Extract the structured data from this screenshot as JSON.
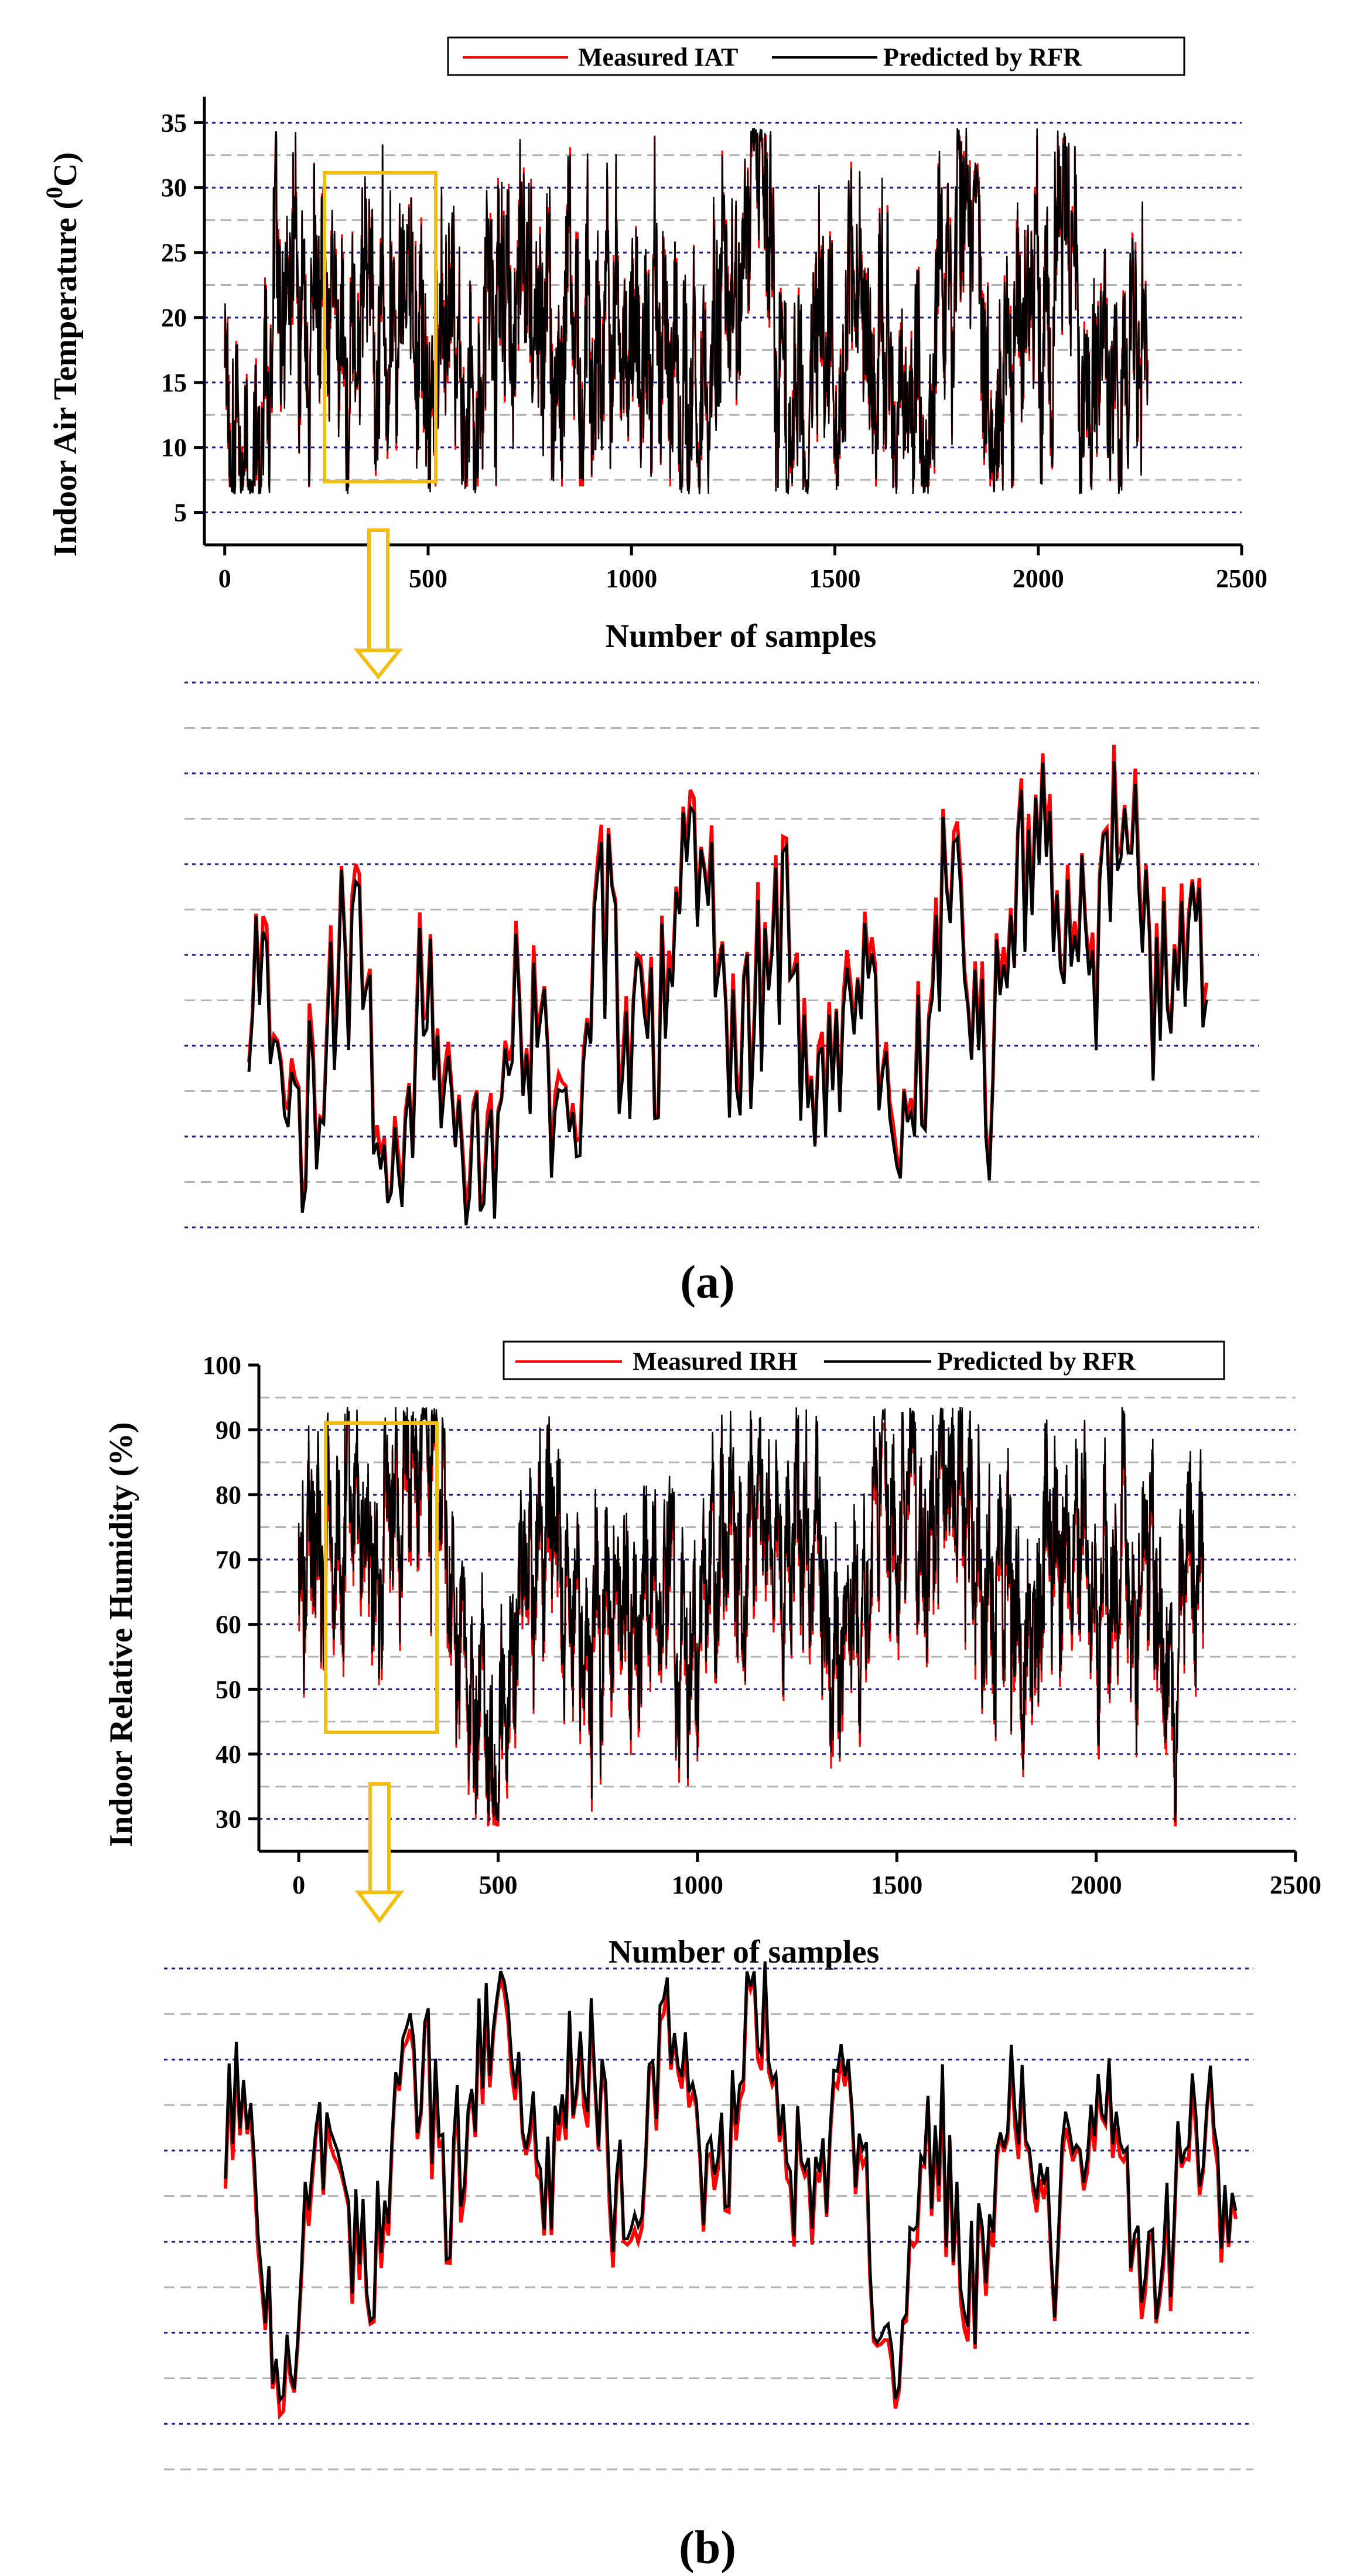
{
  "colors": {
    "measured": "#ff0000",
    "predicted": "#000000",
    "major_grid": "#1c1c8c",
    "minor_grid": "#b4b4b4",
    "highlight": "#f2be12"
  },
  "chart_data": [
    {
      "id": "a_main",
      "type": "line",
      "xlabel": "Number of samples",
      "ylabel": "Indoor Air Temperature (",
      "ylabel_sup": "0",
      "ylabel_end": "C)",
      "xlim": [
        -50,
        2500
      ],
      "ylim": [
        2.5,
        37
      ],
      "xticks": [
        0,
        500,
        1000,
        1500,
        2000,
        2500
      ],
      "xtick_labels": [
        "0",
        "500",
        "1000",
        "1500",
        "2000",
        "2500"
      ],
      "yticks": [
        5,
        10,
        15,
        20,
        25,
        30,
        35
      ],
      "ytick_labels": [
        "5",
        "10",
        "15",
        "20",
        "25",
        "30",
        "35"
      ],
      "n_samples": 2270,
      "value_range": [
        7,
        34
      ],
      "mean_value": 18,
      "highlight_range": {
        "x": [
          200,
          470
        ],
        "y": [
          7.5,
          31.5
        ]
      },
      "legend": [
        "Measured IAT",
        "Predicted by RFR"
      ],
      "series": [
        {
          "name": "Measured IAT",
          "color": "#ff0000"
        },
        {
          "name": "Predicted by RFR",
          "color": "#000000"
        }
      ]
    },
    {
      "id": "a_zoom",
      "type": "line",
      "description_range": "zoom of samples 200-470",
      "xlim": [
        200,
        470
      ],
      "ylim": [
        7,
        35
      ],
      "series": [
        {
          "name": "Measured IAT",
          "color": "#ff0000"
        },
        {
          "name": "Predicted by RFR",
          "color": "#000000"
        }
      ]
    },
    {
      "id": "b_main",
      "type": "line",
      "xlabel": "Number of samples",
      "ylabel": "Indoor Relative Humidity (%)",
      "xlim": [
        -100,
        2500
      ],
      "ylim": [
        25,
        100
      ],
      "xticks": [
        0,
        500,
        1000,
        1500,
        2000,
        2500
      ],
      "xtick_labels": [
        "0",
        "500",
        "1000",
        "1500",
        "2000",
        "2500"
      ],
      "yticks": [
        30,
        40,
        50,
        60,
        70,
        80,
        90,
        100
      ],
      "ytick_labels": [
        "30",
        "40",
        "50",
        "60",
        "70",
        "80",
        "90",
        "100"
      ],
      "n_samples": 2270,
      "value_range": [
        29,
        91
      ],
      "mean_value": 68,
      "highlight_range": {
        "x": [
          60,
          340
        ],
        "y": [
          44,
          93
        ]
      },
      "legend": [
        "Measured IRH",
        "Predicted by RFR"
      ],
      "series": [
        {
          "name": "Measured IRH",
          "color": "#ff0000"
        },
        {
          "name": "Predicted by RFR",
          "color": "#000000"
        }
      ]
    },
    {
      "id": "b_zoom",
      "type": "line",
      "description_range": "zoom of samples 60-340",
      "xlim": [
        60,
        340
      ],
      "ylim": [
        30,
        92
      ],
      "series": [
        {
          "name": "Measured IRH",
          "color": "#ff0000"
        },
        {
          "name": "Predicted by RFR",
          "color": "#000000"
        }
      ]
    }
  ],
  "panels": {
    "a": "(a)",
    "b": "(b)"
  }
}
